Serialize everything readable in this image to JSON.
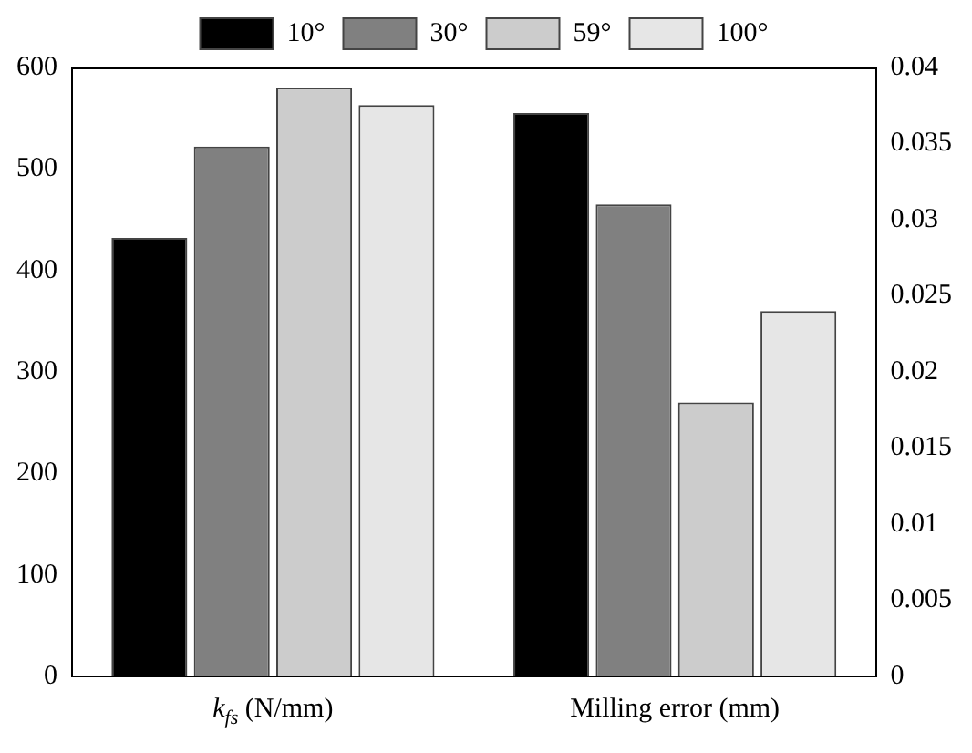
{
  "chart_data": {
    "type": "bar",
    "categories": [
      "k$_{fs}$ (N/mm)",
      "Milling error (mm)"
    ],
    "series": [
      {
        "name": "10°",
        "color": "#000000",
        "values": [
          432,
          null
        ]
      },
      {
        "name": "30°",
        "color": "#808080",
        "values": [
          522,
          null
        ]
      },
      {
        "name": "59°",
        "color": "#cccccc",
        "values": [
          580,
          null
        ]
      },
      {
        "name": "100°",
        "color": "#e6e6e6",
        "values": [
          563,
          null
        ]
      },
      {
        "color": "#000000",
        "axis": "y2",
        "values": [
          null,
          0.037
        ]
      },
      {
        "color": "#808080",
        "axis": "y2",
        "values": [
          null,
          0.031
        ]
      },
      {
        "color": "#cccccc",
        "axis": "y2",
        "values": [
          null,
          0.018
        ]
      },
      {
        "color": "#e6e6e6",
        "axis": "y2",
        "values": [
          null,
          0.024
        ]
      }
    ],
    "ylim": [
      0,
      600
    ],
    "yticks": [
      0,
      100,
      200,
      300,
      400,
      500,
      600
    ],
    "y2lim": [
      0,
      0.04
    ],
    "y2ticks": [
      0,
      0.005,
      0.01,
      0.015,
      0.02,
      0.025,
      0.03,
      0.035,
      0.04
    ],
    "legend": "top"
  }
}
